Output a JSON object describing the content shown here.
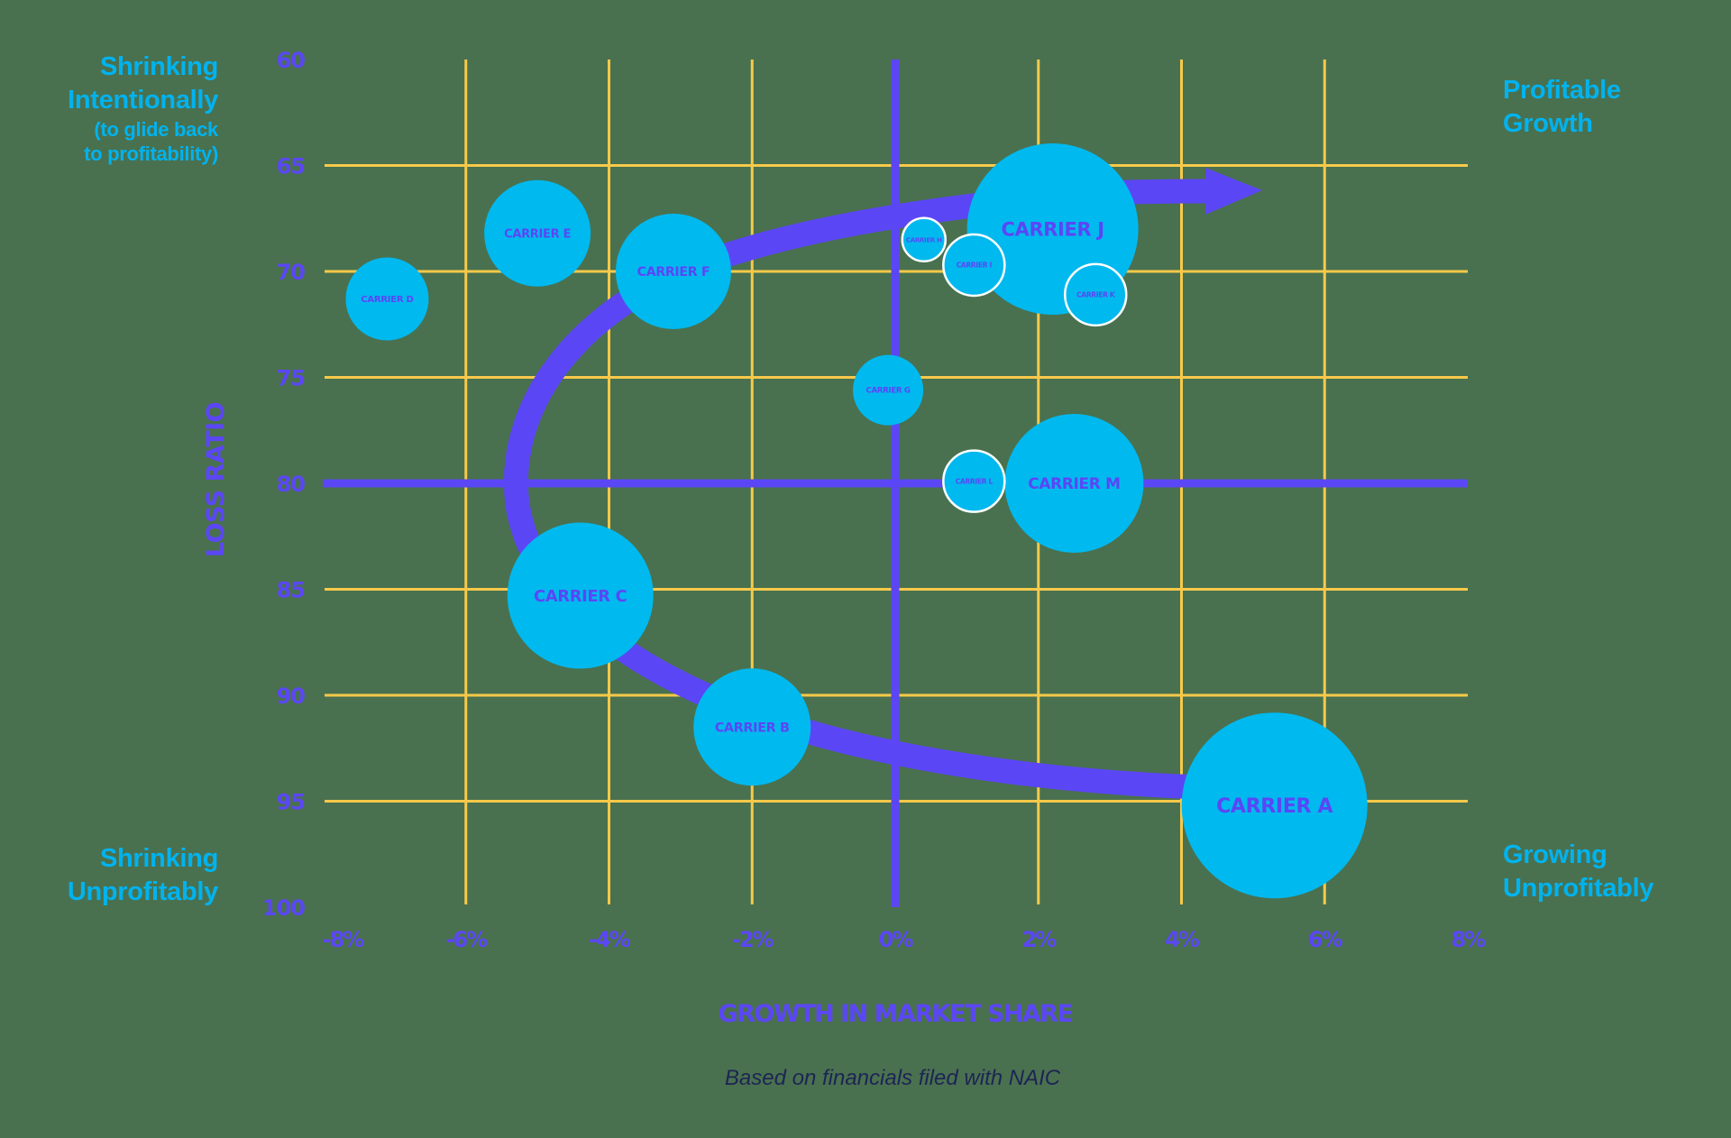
{
  "quadrants": {
    "top_left": {
      "line1": "Shrinking",
      "line2": "Intentionally",
      "sub1": "(to glide back",
      "sub2": "to profitability)"
    },
    "top_right": {
      "line1": "Profitable",
      "line2": "Growth"
    },
    "bottom_left": {
      "line1": "Shrinking",
      "line2": "Unprofitably"
    },
    "bottom_right": {
      "line1": "Growing",
      "line2": "Unprofitably"
    }
  },
  "caption": "Based on financials filed with NAIC",
  "colors": {
    "background": "#49714f",
    "grid": "#f8c94a",
    "axis_accent": "#5b46f5",
    "bubble": "#00b9ef",
    "bubble_label": "#5b46f5",
    "quadrant_text": "#00b3ef",
    "caption": "#1e2454"
  },
  "chart_data": {
    "type": "scatter",
    "subtype": "bubble",
    "title": "",
    "xlabel": "GROWTH IN MARKET SHARE",
    "ylabel": "LOSS RATIO",
    "xlim": [
      -8,
      8
    ],
    "ylim": [
      100,
      60
    ],
    "y_inverted": true,
    "x_ticks": [
      "-8%",
      "-6%",
      "-4%",
      "-2%",
      "0%",
      "2%",
      "4%",
      "6%",
      "8%"
    ],
    "x_tick_values": [
      -8,
      -6,
      -4,
      -2,
      0,
      2,
      4,
      6,
      8
    ],
    "y_ticks": [
      "60",
      "65",
      "70",
      "75",
      "80",
      "85",
      "90",
      "95",
      "100"
    ],
    "y_tick_values": [
      60,
      65,
      70,
      75,
      80,
      85,
      90,
      95,
      100
    ],
    "grid": true,
    "reference_lines": {
      "x": 0,
      "y": 80
    },
    "annotation": "Curved arrow from Carrier A through B, C, F toward upper right (Profitable Growth)",
    "series": [
      {
        "name": "CARRIER A",
        "x": 5.3,
        "y": 95.2,
        "size": 103,
        "outlined": false
      },
      {
        "name": "CARRIER B",
        "x": -2.0,
        "y": 91.5,
        "size": 65,
        "outlined": false
      },
      {
        "name": "CARRIER C",
        "x": -4.4,
        "y": 85.3,
        "size": 81,
        "outlined": false
      },
      {
        "name": "CARRIER D",
        "x": -7.1,
        "y": 71.3,
        "size": 46,
        "outlined": false
      },
      {
        "name": "CARRIER E",
        "x": -5.0,
        "y": 68.2,
        "size": 59,
        "outlined": false
      },
      {
        "name": "CARRIER F",
        "x": -3.1,
        "y": 70.0,
        "size": 64,
        "outlined": false
      },
      {
        "name": "CARRIER G",
        "x": -0.1,
        "y": 75.6,
        "size": 39,
        "outlined": false
      },
      {
        "name": "CARRIER J",
        "x": 2.2,
        "y": 68.0,
        "size": 95,
        "outlined": false
      },
      {
        "name": "CARRIER H",
        "x": 0.4,
        "y": 68.5,
        "size": 24,
        "outlined": true
      },
      {
        "name": "CARRIER I",
        "x": 1.1,
        "y": 69.7,
        "size": 34,
        "outlined": true
      },
      {
        "name": "CARRIER K",
        "x": 2.8,
        "y": 71.1,
        "size": 34,
        "outlined": true
      },
      {
        "name": "CARRIER M",
        "x": 2.5,
        "y": 80.0,
        "size": 77,
        "outlined": false
      },
      {
        "name": "CARRIER L",
        "x": 1.1,
        "y": 79.9,
        "size": 34,
        "outlined": true
      }
    ]
  }
}
